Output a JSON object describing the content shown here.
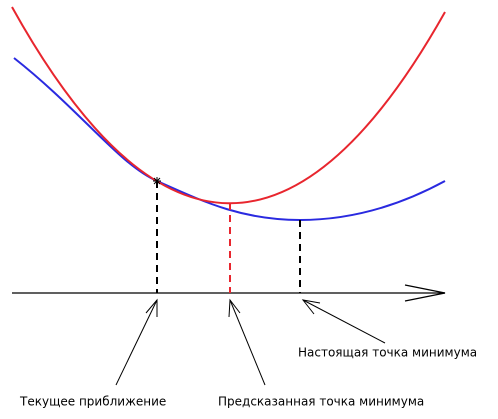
{
  "labels": {
    "current": "Текущее приближение",
    "predicted": "Предсказанная точка минимума",
    "true_minimum": "Настоящая точка минимума"
  }
}
